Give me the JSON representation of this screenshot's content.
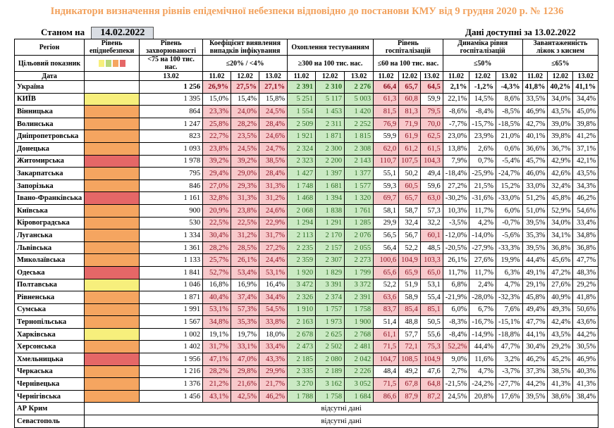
{
  "title": "Індикатори визначення рівнів епідемічної небезпеки відповідно до постанови КМУ від 9 грудня 2020 р. № 1236",
  "as_of_label": "Станом на",
  "as_of_date": "14.02.2022",
  "available_label": "Дані доступні за 13.02.2022",
  "headers": {
    "region": "Регіон",
    "indicator": "Цільовий показник",
    "date": "Дата",
    "level": "Рівень епіднебезпеки",
    "incidence": "Рівень захворюваності",
    "positivity": "Коефіцієнт виявлення випадків інфікування",
    "testing": "Охоплення тестуванням",
    "hosp": "Рівень госпіталізацій",
    "hosp_dyn": "Динаміка рівня госпіталізацій",
    "oxygen": "Завантаженність ліжок з киснем",
    "incidence_target": "<75 на 100 тис. нас.",
    "positivity_target": "≤20% / <4%",
    "testing_target": "≥300 на 100 тис. нас.",
    "hosp_target": "≤60 на 100 тис. нас.",
    "hosp_dyn_target": "≤50%",
    "oxygen_target": "≤65%",
    "d1": "11.02",
    "d2": "12.02",
    "d3": "13.02"
  },
  "legend_colors": [
    "#f7ef7c",
    "#b9d77a",
    "#f5a560",
    "#e56767"
  ],
  "level_colors": {
    "Y": "#f7ef7c",
    "O": "#f5a560",
    "R": "#e56767"
  },
  "no_data": "відсутні дані",
  "rows": [
    {
      "region": "Україна",
      "level": "N",
      "inc": "1 256",
      "p1": "26,9%",
      "p2": "27,5%",
      "p3": "27,1%",
      "t1": "2 391",
      "t2": "2 310",
      "t3": "2 276",
      "h1": "66,4",
      "h2": "65,7",
      "h3": "64,5",
      "d1": "2,1%",
      "d2": "-1,2%",
      "d3": "-4,3%",
      "o1": "41,8%",
      "o2": "40,2%",
      "o3": "41,1%",
      "ua": true
    },
    {
      "region": "КИЇВ",
      "level": "Y",
      "inc": "1 395",
      "p1": "15,0%",
      "p2": "15,4%",
      "p3": "15,8%",
      "t1": "5 251",
      "t2": "5 117",
      "t3": "5 003",
      "h1": "61,3",
      "h2": "60,8",
      "h3": "59,9",
      "d1": "22,1%",
      "d2": "14,5%",
      "d3": "8,6%",
      "o1": "33,5%",
      "o2": "34,0%",
      "o3": "34,4%"
    },
    {
      "region": "Вінницька",
      "level": "O",
      "inc": "864",
      "p1": "23,3%",
      "p2": "24,0%",
      "p3": "24,5%",
      "t1": "1 554",
      "t2": "1 453",
      "t3": "1 420",
      "h1": "81,5",
      "h2": "81,3",
      "h3": "79,5",
      "d1": "-8,6%",
      "d2": "-8,4%",
      "d3": "-8,5%",
      "o1": "46,9%",
      "o2": "43,5%",
      "o3": "45,0%"
    },
    {
      "region": "Волинська",
      "level": "O",
      "inc": "1 247",
      "p1": "25,8%",
      "p2": "28,2%",
      "p3": "28,4%",
      "t1": "2 509",
      "t2": "2 311",
      "t3": "2 252",
      "h1": "76,9",
      "h2": "71,9",
      "h3": "70,0",
      "d1": "-7,7%",
      "d2": "-15,7%",
      "d3": "-18,5%",
      "o1": "42,7%",
      "o2": "39,0%",
      "o3": "39,8%"
    },
    {
      "region": "Дніпропетровська",
      "level": "O",
      "inc": "823",
      "p1": "22,7%",
      "p2": "23,5%",
      "p3": "24,6%",
      "t1": "1 921",
      "t2": "1 871",
      "t3": "1 815",
      "h1": "59,9",
      "h2": "61,9",
      "h3": "62,5",
      "d1": "23,0%",
      "d2": "23,9%",
      "d3": "21,0%",
      "o1": "40,1%",
      "o2": "39,8%",
      "o3": "41,2%"
    },
    {
      "region": "Донецька",
      "level": "O",
      "inc": "1 093",
      "p1": "23,8%",
      "p2": "24,5%",
      "p3": "24,7%",
      "t1": "2 324",
      "t2": "2 300",
      "t3": "2 308",
      "h1": "62,0",
      "h2": "61,2",
      "h3": "61,5",
      "d1": "13,8%",
      "d2": "2,6%",
      "d3": "0,6%",
      "o1": "36,6%",
      "o2": "36,7%",
      "o3": "37,1%"
    },
    {
      "region": "Житомирська",
      "level": "R",
      "inc": "1 978",
      "p1": "39,2%",
      "p2": "39,2%",
      "p3": "38,5%",
      "t1": "2 323",
      "t2": "2 200",
      "t3": "2 143",
      "h1": "110,7",
      "h2": "107,5",
      "h3": "104,3",
      "d1": "7,9%",
      "d2": "0,7%",
      "d3": "-5,4%",
      "o1": "45,7%",
      "o2": "42,9%",
      "o3": "42,1%"
    },
    {
      "region": "Закарпатська",
      "level": "O",
      "inc": "795",
      "p1": "29,4%",
      "p2": "29,0%",
      "p3": "28,4%",
      "t1": "1 427",
      "t2": "1 397",
      "t3": "1 377",
      "h1": "55,1",
      "h2": "50,2",
      "h3": "49,4",
      "d1": "-18,4%",
      "d2": "-25,9%",
      "d3": "-24,7%",
      "o1": "46,0%",
      "o2": "42,6%",
      "o3": "43,5%"
    },
    {
      "region": "Запорізька",
      "level": "O",
      "inc": "846",
      "p1": "27,0%",
      "p2": "29,3%",
      "p3": "31,3%",
      "t1": "1 748",
      "t2": "1 681",
      "t3": "1 577",
      "h1": "59,3",
      "h2": "60,5",
      "h3": "59,6",
      "d1": "27,2%",
      "d2": "21,5%",
      "d3": "15,2%",
      "o1": "33,0%",
      "o2": "32,4%",
      "o3": "34,3%"
    },
    {
      "region": "Івано-Франківська",
      "level": "R",
      "inc": "1 161",
      "p1": "32,8%",
      "p2": "31,3%",
      "p3": "31,2%",
      "t1": "1 468",
      "t2": "1 394",
      "t3": "1 320",
      "h1": "69,7",
      "h2": "65,7",
      "h3": "63,0",
      "d1": "-30,2%",
      "d2": "-31,6%",
      "d3": "-33,0%",
      "o1": "51,2%",
      "o2": "45,8%",
      "o3": "46,2%"
    },
    {
      "region": "Київська",
      "level": "O",
      "inc": "900",
      "p1": "20,9%",
      "p2": "23,8%",
      "p3": "24,6%",
      "t1": "2 068",
      "t2": "1 838",
      "t3": "1 761",
      "h1": "58,1",
      "h2": "58,7",
      "h3": "57,3",
      "d1": "10,3%",
      "d2": "11,7%",
      "d3": "6,0%",
      "o1": "51,0%",
      "o2": "52,9%",
      "o3": "54,6%"
    },
    {
      "region": "Кіровоградська",
      "level": "O",
      "inc": "530",
      "p1": "22,5%",
      "p2": "22,5%",
      "p3": "22,9%",
      "t1": "1 294",
      "t2": "1 291",
      "t3": "1 285",
      "h1": "29,9",
      "h2": "32,4",
      "h3": "32,2",
      "d1": "-3,5%",
      "d2": "4,2%",
      "d3": "-0,7%",
      "o1": "39,5%",
      "o2": "34,0%",
      "o3": "33,4%"
    },
    {
      "region": "Луганська",
      "level": "O",
      "inc": "1 334",
      "p1": "30,4%",
      "p2": "31,2%",
      "p3": "31,7%",
      "t1": "2 113",
      "t2": "2 170",
      "t3": "2 076",
      "h1": "56,5",
      "h2": "56,7",
      "h3": "60,1",
      "d1": "-12,0%",
      "d2": "-14,0%",
      "d3": "-5,6%",
      "o1": "35,3%",
      "o2": "34,1%",
      "o3": "34,8%"
    },
    {
      "region": "Львівська",
      "level": "O",
      "inc": "1 361",
      "p1": "28,2%",
      "p2": "28,5%",
      "p3": "27,2%",
      "t1": "2 235",
      "t2": "2 157",
      "t3": "2 055",
      "h1": "56,4",
      "h2": "52,2",
      "h3": "48,5",
      "d1": "-20,5%",
      "d2": "-27,9%",
      "d3": "-33,3%",
      "o1": "39,5%",
      "o2": "36,8%",
      "o3": "36,8%"
    },
    {
      "region": "Миколаївська",
      "level": "O",
      "inc": "1 133",
      "p1": "25,7%",
      "p2": "26,1%",
      "p3": "24,4%",
      "t1": "2 359",
      "t2": "2 307",
      "t3": "2 273",
      "h1": "100,6",
      "h2": "104,9",
      "h3": "103,3",
      "d1": "26,1%",
      "d2": "27,6%",
      "d3": "19,9%",
      "o1": "44,4%",
      "o2": "45,6%",
      "o3": "47,7%"
    },
    {
      "region": "Одеська",
      "level": "R",
      "inc": "1 841",
      "p1": "52,7%",
      "p2": "53,4%",
      "p3": "53,1%",
      "t1": "1 920",
      "t2": "1 829",
      "t3": "1 799",
      "h1": "65,6",
      "h2": "65,9",
      "h3": "65,0",
      "d1": "11,7%",
      "d2": "11,7%",
      "d3": "6,3%",
      "o1": "49,1%",
      "o2": "47,2%",
      "o3": "48,3%"
    },
    {
      "region": "Полтавська",
      "level": "Y",
      "inc": "1 046",
      "p1": "16,8%",
      "p2": "16,9%",
      "p3": "16,4%",
      "t1": "3 472",
      "t2": "3 391",
      "t3": "3 372",
      "h1": "52,2",
      "h2": "51,9",
      "h3": "53,1",
      "d1": "6,8%",
      "d2": "2,4%",
      "d3": "4,7%",
      "o1": "29,1%",
      "o2": "27,6%",
      "o3": "29,2%"
    },
    {
      "region": "Рівненська",
      "level": "O",
      "inc": "1 871",
      "p1": "40,4%",
      "p2": "37,4%",
      "p3": "34,4%",
      "t1": "2 326",
      "t2": "2 374",
      "t3": "2 391",
      "h1": "63,6",
      "h2": "58,9",
      "h3": "55,4",
      "d1": "-21,9%",
      "d2": "-28,0%",
      "d3": "-32,3%",
      "o1": "45,8%",
      "o2": "40,9%",
      "o3": "41,8%"
    },
    {
      "region": "Сумська",
      "level": "O",
      "inc": "1 991",
      "p1": "53,1%",
      "p2": "57,3%",
      "p3": "54,5%",
      "t1": "1 910",
      "t2": "1 757",
      "t3": "1 758",
      "h1": "83,7",
      "h2": "85,4",
      "h3": "85,1",
      "d1": "6,0%",
      "d2": "6,7%",
      "d3": "7,6%",
      "o1": "49,4%",
      "o2": "49,3%",
      "o3": "50,6%"
    },
    {
      "region": "Тернопільська",
      "level": "O",
      "inc": "1 567",
      "p1": "34,8%",
      "p2": "35,3%",
      "p3": "33,8%",
      "t1": "2 163",
      "t2": "1 973",
      "t3": "1 900",
      "h1": "51,4",
      "h2": "48,8",
      "h3": "50,5",
      "d1": "-8,3%",
      "d2": "-16,7%",
      "d3": "-15,1%",
      "o1": "47,7%",
      "o2": "42,4%",
      "o3": "43,6%"
    },
    {
      "region": "Харківська",
      "level": "Y",
      "inc": "1 002",
      "p1": "19,1%",
      "p2": "19,7%",
      "p3": "18,0%",
      "t1": "2 678",
      "t2": "2 625",
      "t3": "2 768",
      "h1": "61,1",
      "h2": "57,7",
      "h3": "55,6",
      "d1": "-8,4%",
      "d2": "-14,9%",
      "d3": "-18,8%",
      "o1": "44,1%",
      "o2": "43,5%",
      "o3": "44,2%"
    },
    {
      "region": "Херсонська",
      "level": "O",
      "inc": "1 402",
      "p1": "31,7%",
      "p2": "33,1%",
      "p3": "33,4%",
      "t1": "2 473",
      "t2": "2 502",
      "t3": "2 481",
      "h1": "71,5",
      "h2": "72,1",
      "h3": "75,3",
      "d1": "52,2%",
      "d2": "44,4%",
      "d3": "47,7%",
      "o1": "30,4%",
      "o2": "29,2%",
      "o3": "30,5%"
    },
    {
      "region": "Хмельницька",
      "level": "R",
      "inc": "1 956",
      "p1": "47,1%",
      "p2": "47,0%",
      "p3": "43,3%",
      "t1": "2 185",
      "t2": "2 080",
      "t3": "2 042",
      "h1": "104,7",
      "h2": "108,5",
      "h3": "104,9",
      "d1": "9,0%",
      "d2": "11,6%",
      "d3": "3,2%",
      "o1": "46,2%",
      "o2": "45,2%",
      "o3": "46,9%"
    },
    {
      "region": "Черкаська",
      "level": "O",
      "inc": "1 216",
      "p1": "28,2%",
      "p2": "29,8%",
      "p3": "29,9%",
      "t1": "2 335",
      "t2": "2 189",
      "t3": "2 226",
      "h1": "48,4",
      "h2": "49,2",
      "h3": "47,6",
      "d1": "2,7%",
      "d2": "4,7%",
      "d3": "-3,7%",
      "o1": "37,3%",
      "o2": "38,5%",
      "o3": "40,3%"
    },
    {
      "region": "Чернівецька",
      "level": "O",
      "inc": "1 376",
      "p1": "21,2%",
      "p2": "21,6%",
      "p3": "21,7%",
      "t1": "3 270",
      "t2": "3 162",
      "t3": "3 052",
      "h1": "71,5",
      "h2": "67,8",
      "h3": "64,8",
      "d1": "-21,5%",
      "d2": "-24,2%",
      "d3": "-27,7%",
      "o1": "44,2%",
      "o2": "41,3%",
      "o3": "41,3%"
    },
    {
      "region": "Чернігівська",
      "level": "O",
      "inc": "1 456",
      "p1": "43,1%",
      "p2": "42,5%",
      "p3": "46,2%",
      "t1": "1 788",
      "t2": "1 758",
      "t3": "1 684",
      "h1": "86,6",
      "h2": "87,9",
      "h3": "87,2",
      "d1": "24,5%",
      "d2": "20,8%",
      "d3": "17,6%",
      "o1": "39,5%",
      "o2": "38,6%",
      "o3": "38,4%"
    }
  ],
  "na_rows": [
    {
      "region": "АР Крим"
    },
    {
      "region": "Севастополь"
    }
  ]
}
